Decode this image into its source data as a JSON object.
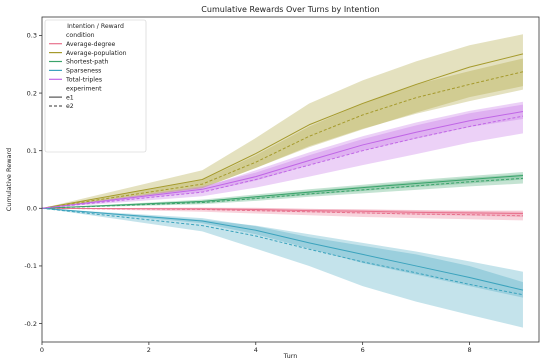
{
  "chart_data": {
    "type": "line",
    "title": "Cumulative Rewards Over Turns by Intention",
    "xlabel": "Turn",
    "ylabel": "Cumulative Reward",
    "xlim": [
      0,
      9.3
    ],
    "ylim": [
      -0.232,
      0.332
    ],
    "xticks": [
      0,
      2,
      4,
      6,
      8
    ],
    "yticks": [
      -0.2,
      -0.1,
      0.0,
      0.1,
      0.2,
      0.3
    ],
    "grid": false,
    "legend": {
      "placement": "top-left",
      "title": "Intention / Reward",
      "hue_heading": "condition",
      "style_heading": "experiment",
      "style_entries": [
        {
          "name": "e1",
          "dash": "solid"
        },
        {
          "name": "e2",
          "dash": "dashed"
        }
      ]
    },
    "x": [
      0,
      3,
      4,
      5,
      6,
      7,
      8,
      9
    ],
    "series": [
      {
        "name": "Average-degree",
        "color": "#e8718d",
        "e1": [
          0,
          -0.001,
          -0.002,
          -0.004,
          -0.005,
          -0.007,
          -0.008,
          -0.009
        ],
        "e1_band": [
          [
            0,
            0
          ],
          [
            -0.003,
            0.001
          ],
          [
            -0.005,
            0.001
          ],
          [
            -0.007,
            -0.001
          ],
          [
            -0.009,
            -0.002
          ],
          [
            -0.011,
            -0.003
          ],
          [
            -0.013,
            -0.004
          ],
          [
            -0.015,
            -0.004
          ]
        ],
        "e2": [
          0,
          -0.002,
          -0.004,
          -0.006,
          -0.008,
          -0.01,
          -0.011,
          -0.013
        ],
        "e2_band": [
          [
            0,
            0
          ],
          [
            -0.006,
            0.001
          ],
          [
            -0.009,
            0.0
          ],
          [
            -0.012,
            -0.001
          ],
          [
            -0.015,
            -0.002
          ],
          [
            -0.017,
            -0.004
          ],
          [
            -0.019,
            -0.005
          ],
          [
            -0.021,
            -0.006
          ]
        ]
      },
      {
        "name": "Average-population",
        "color": "#a59a2c",
        "e1": [
          0,
          0.05,
          0.095,
          0.145,
          0.182,
          0.215,
          0.245,
          0.268
        ],
        "e1_band": [
          [
            0,
            0
          ],
          [
            0.035,
            0.066
          ],
          [
            0.07,
            0.122
          ],
          [
            0.106,
            0.182
          ],
          [
            0.137,
            0.222
          ],
          [
            0.166,
            0.255
          ],
          [
            0.193,
            0.283
          ],
          [
            0.212,
            0.302
          ]
        ],
        "e2": [
          0,
          0.042,
          0.08,
          0.125,
          0.162,
          0.192,
          0.215,
          0.237
        ],
        "e2_band": [
          [
            0,
            0
          ],
          [
            0.035,
            0.049
          ],
          [
            0.07,
            0.092
          ],
          [
            0.108,
            0.142
          ],
          [
            0.138,
            0.182
          ],
          [
            0.164,
            0.215
          ],
          [
            0.186,
            0.238
          ],
          [
            0.206,
            0.26
          ]
        ]
      },
      {
        "name": "Shortest-path",
        "color": "#3aa36b",
        "e1": [
          0,
          0.012,
          0.02,
          0.028,
          0.036,
          0.043,
          0.05,
          0.057
        ],
        "e1_band": [
          [
            0,
            0
          ],
          [
            0.009,
            0.015
          ],
          [
            0.016,
            0.024
          ],
          [
            0.023,
            0.033
          ],
          [
            0.03,
            0.041
          ],
          [
            0.037,
            0.049
          ],
          [
            0.043,
            0.056
          ],
          [
            0.05,
            0.063
          ]
        ],
        "e2": [
          0,
          0.01,
          0.017,
          0.025,
          0.032,
          0.039,
          0.046,
          0.052
        ],
        "e2_band": [
          [
            0,
            0
          ],
          [
            0.007,
            0.013
          ],
          [
            0.013,
            0.021
          ],
          [
            0.02,
            0.03
          ],
          [
            0.026,
            0.038
          ],
          [
            0.032,
            0.046
          ],
          [
            0.038,
            0.053
          ],
          [
            0.043,
            0.059
          ]
        ]
      },
      {
        "name": "Sparseness",
        "color": "#3ba3bd",
        "e1": [
          0,
          -0.022,
          -0.038,
          -0.06,
          -0.08,
          -0.1,
          -0.12,
          -0.142
        ],
        "e1_band": [
          [
            0,
            0
          ],
          [
            -0.026,
            -0.017
          ],
          [
            -0.045,
            -0.031
          ],
          [
            -0.07,
            -0.05
          ],
          [
            -0.095,
            -0.065
          ],
          [
            -0.115,
            -0.08
          ],
          [
            -0.135,
            -0.1
          ],
          [
            -0.155,
            -0.128
          ]
        ],
        "e2": [
          0,
          -0.03,
          -0.048,
          -0.071,
          -0.093,
          -0.112,
          -0.132,
          -0.15
        ],
        "e2_band": [
          [
            0,
            0
          ],
          [
            -0.04,
            -0.02
          ],
          [
            -0.07,
            -0.03
          ],
          [
            -0.1,
            -0.045
          ],
          [
            -0.135,
            -0.06
          ],
          [
            -0.162,
            -0.075
          ],
          [
            -0.185,
            -0.092
          ],
          [
            -0.207,
            -0.11
          ]
        ]
      },
      {
        "name": "Total-triples",
        "color": "#c066e6",
        "e1": [
          0,
          0.033,
          0.055,
          0.083,
          0.11,
          0.132,
          0.152,
          0.168
        ],
        "e1_band": [
          [
            0,
            0
          ],
          [
            0.028,
            0.038
          ],
          [
            0.048,
            0.062
          ],
          [
            0.075,
            0.092
          ],
          [
            0.1,
            0.12
          ],
          [
            0.121,
            0.144
          ],
          [
            0.141,
            0.165
          ],
          [
            0.155,
            0.18
          ]
        ],
        "e2": [
          0,
          0.028,
          0.05,
          0.075,
          0.1,
          0.122,
          0.142,
          0.16
        ],
        "e2_band": [
          [
            0,
            0
          ],
          [
            0.021,
            0.036
          ],
          [
            0.036,
            0.066
          ],
          [
            0.055,
            0.097
          ],
          [
            0.075,
            0.125
          ],
          [
            0.094,
            0.149
          ],
          [
            0.114,
            0.169
          ],
          [
            0.13,
            0.185
          ]
        ]
      }
    ]
  }
}
